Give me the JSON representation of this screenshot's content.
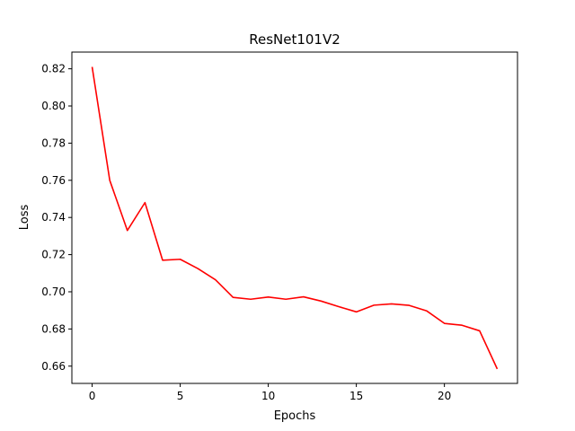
{
  "chart_data": {
    "type": "line",
    "title": "ResNet101V2",
    "xlabel": "Epochs",
    "ylabel": "Loss",
    "xlim": [
      -1.15,
      24.15
    ],
    "ylim": [
      0.6507,
      0.829
    ],
    "xticks": [
      0,
      5,
      10,
      15,
      20
    ],
    "xtick_labels": [
      "0",
      "5",
      "10",
      "15",
      "20"
    ],
    "yticks": [
      0.66,
      0.68,
      0.7,
      0.72,
      0.74,
      0.76,
      0.78,
      0.8,
      0.82
    ],
    "ytick_labels": [
      "0.66",
      "0.68",
      "0.70",
      "0.72",
      "0.74",
      "0.76",
      "0.78",
      "0.80",
      "0.82"
    ],
    "grid": false,
    "series": [
      {
        "color": "#ff0000",
        "x": [
          0,
          1,
          2,
          3,
          4,
          5,
          6,
          7,
          8,
          9,
          10,
          11,
          12,
          13,
          14,
          15,
          16,
          17,
          18,
          19,
          20,
          21,
          22,
          23
        ],
        "y": [
          0.821,
          0.76,
          0.733,
          0.748,
          0.717,
          0.7175,
          0.7125,
          0.7065,
          0.697,
          0.696,
          0.6972,
          0.696,
          0.6973,
          0.695,
          0.692,
          0.6892,
          0.6928,
          0.6935,
          0.6927,
          0.6897,
          0.683,
          0.682,
          0.679,
          0.6585
        ]
      }
    ]
  }
}
